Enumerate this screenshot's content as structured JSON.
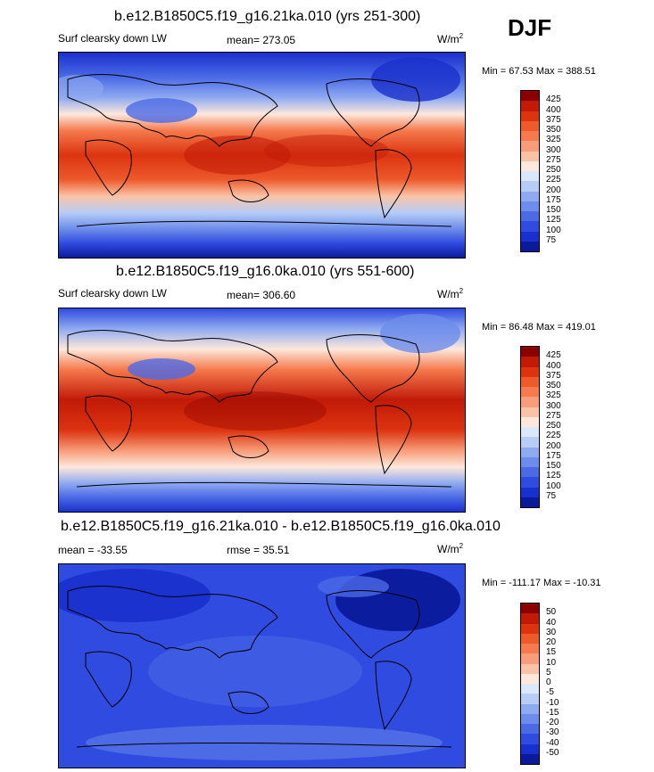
{
  "season": "DJF",
  "panels": [
    {
      "title": "b.e12.B1850C5.f19_g16.21ka.010 (yrs 251-300)",
      "left_label": "Surf clearsky down LW",
      "center_label": "mean= 273.05",
      "units": "W/m",
      "units_sup": "2",
      "stats": "Min =  67.53 Max = 388.51",
      "colorbar": {
        "labels": [
          "425",
          "400",
          "375",
          "350",
          "325",
          "300",
          "275",
          "250",
          "225",
          "200",
          "175",
          "150",
          "125",
          "100",
          "75"
        ],
        "colors": [
          "#8b0000",
          "#c11a07",
          "#dc3410",
          "#ed5a2c",
          "#f57a4d",
          "#f89d79",
          "#fbc3a6",
          "#fde8dc",
          "#dbe7fb",
          "#b7cdf6",
          "#8faaf0",
          "#6d8ceb",
          "#4b6ae6",
          "#2f4be0",
          "#1a30cc",
          "#0a1a9a"
        ]
      }
    },
    {
      "title": "b.e12.B1850C5.f19_g16.0ka.010 (yrs 551-600)",
      "left_label": "Surf clearsky down LW",
      "center_label": "mean= 306.60",
      "units": "W/m",
      "units_sup": "2",
      "stats": "Min =  86.48 Max = 419.01",
      "colorbar": {
        "labels": [
          "425",
          "400",
          "375",
          "350",
          "325",
          "300",
          "275",
          "250",
          "225",
          "200",
          "175",
          "150",
          "125",
          "100",
          "75"
        ],
        "colors": [
          "#8b0000",
          "#c11a07",
          "#dc3410",
          "#ed5a2c",
          "#f57a4d",
          "#f89d79",
          "#fbc3a6",
          "#fde8dc",
          "#dbe7fb",
          "#b7cdf6",
          "#8faaf0",
          "#6d8ceb",
          "#4b6ae6",
          "#2f4be0",
          "#1a30cc",
          "#0a1a9a"
        ]
      }
    },
    {
      "title": "b.e12.B1850C5.f19_g16.21ka.010 - b.e12.B1850C5.f19_g16.0ka.010",
      "left_label": "mean = -33.55",
      "center_label": "rmse =  35.51",
      "units": "W/m",
      "units_sup": "2",
      "stats": "Min = -111.17 Max = -10.31",
      "colorbar": {
        "labels": [
          "50",
          "40",
          "30",
          "20",
          "15",
          "10",
          "5",
          "0",
          "-5",
          "-10",
          "-15",
          "-20",
          "-30",
          "-40",
          "-50"
        ],
        "colors": [
          "#8b0000",
          "#c11a07",
          "#dc3410",
          "#ed5a2c",
          "#f57a4d",
          "#f89d79",
          "#fbc3a6",
          "#fde8dc",
          "#dbe7fb",
          "#b7cdf6",
          "#8faaf0",
          "#6d8ceb",
          "#4b6ae6",
          "#2f4be0",
          "#1a30cc",
          "#0a1a9a"
        ]
      }
    }
  ]
}
